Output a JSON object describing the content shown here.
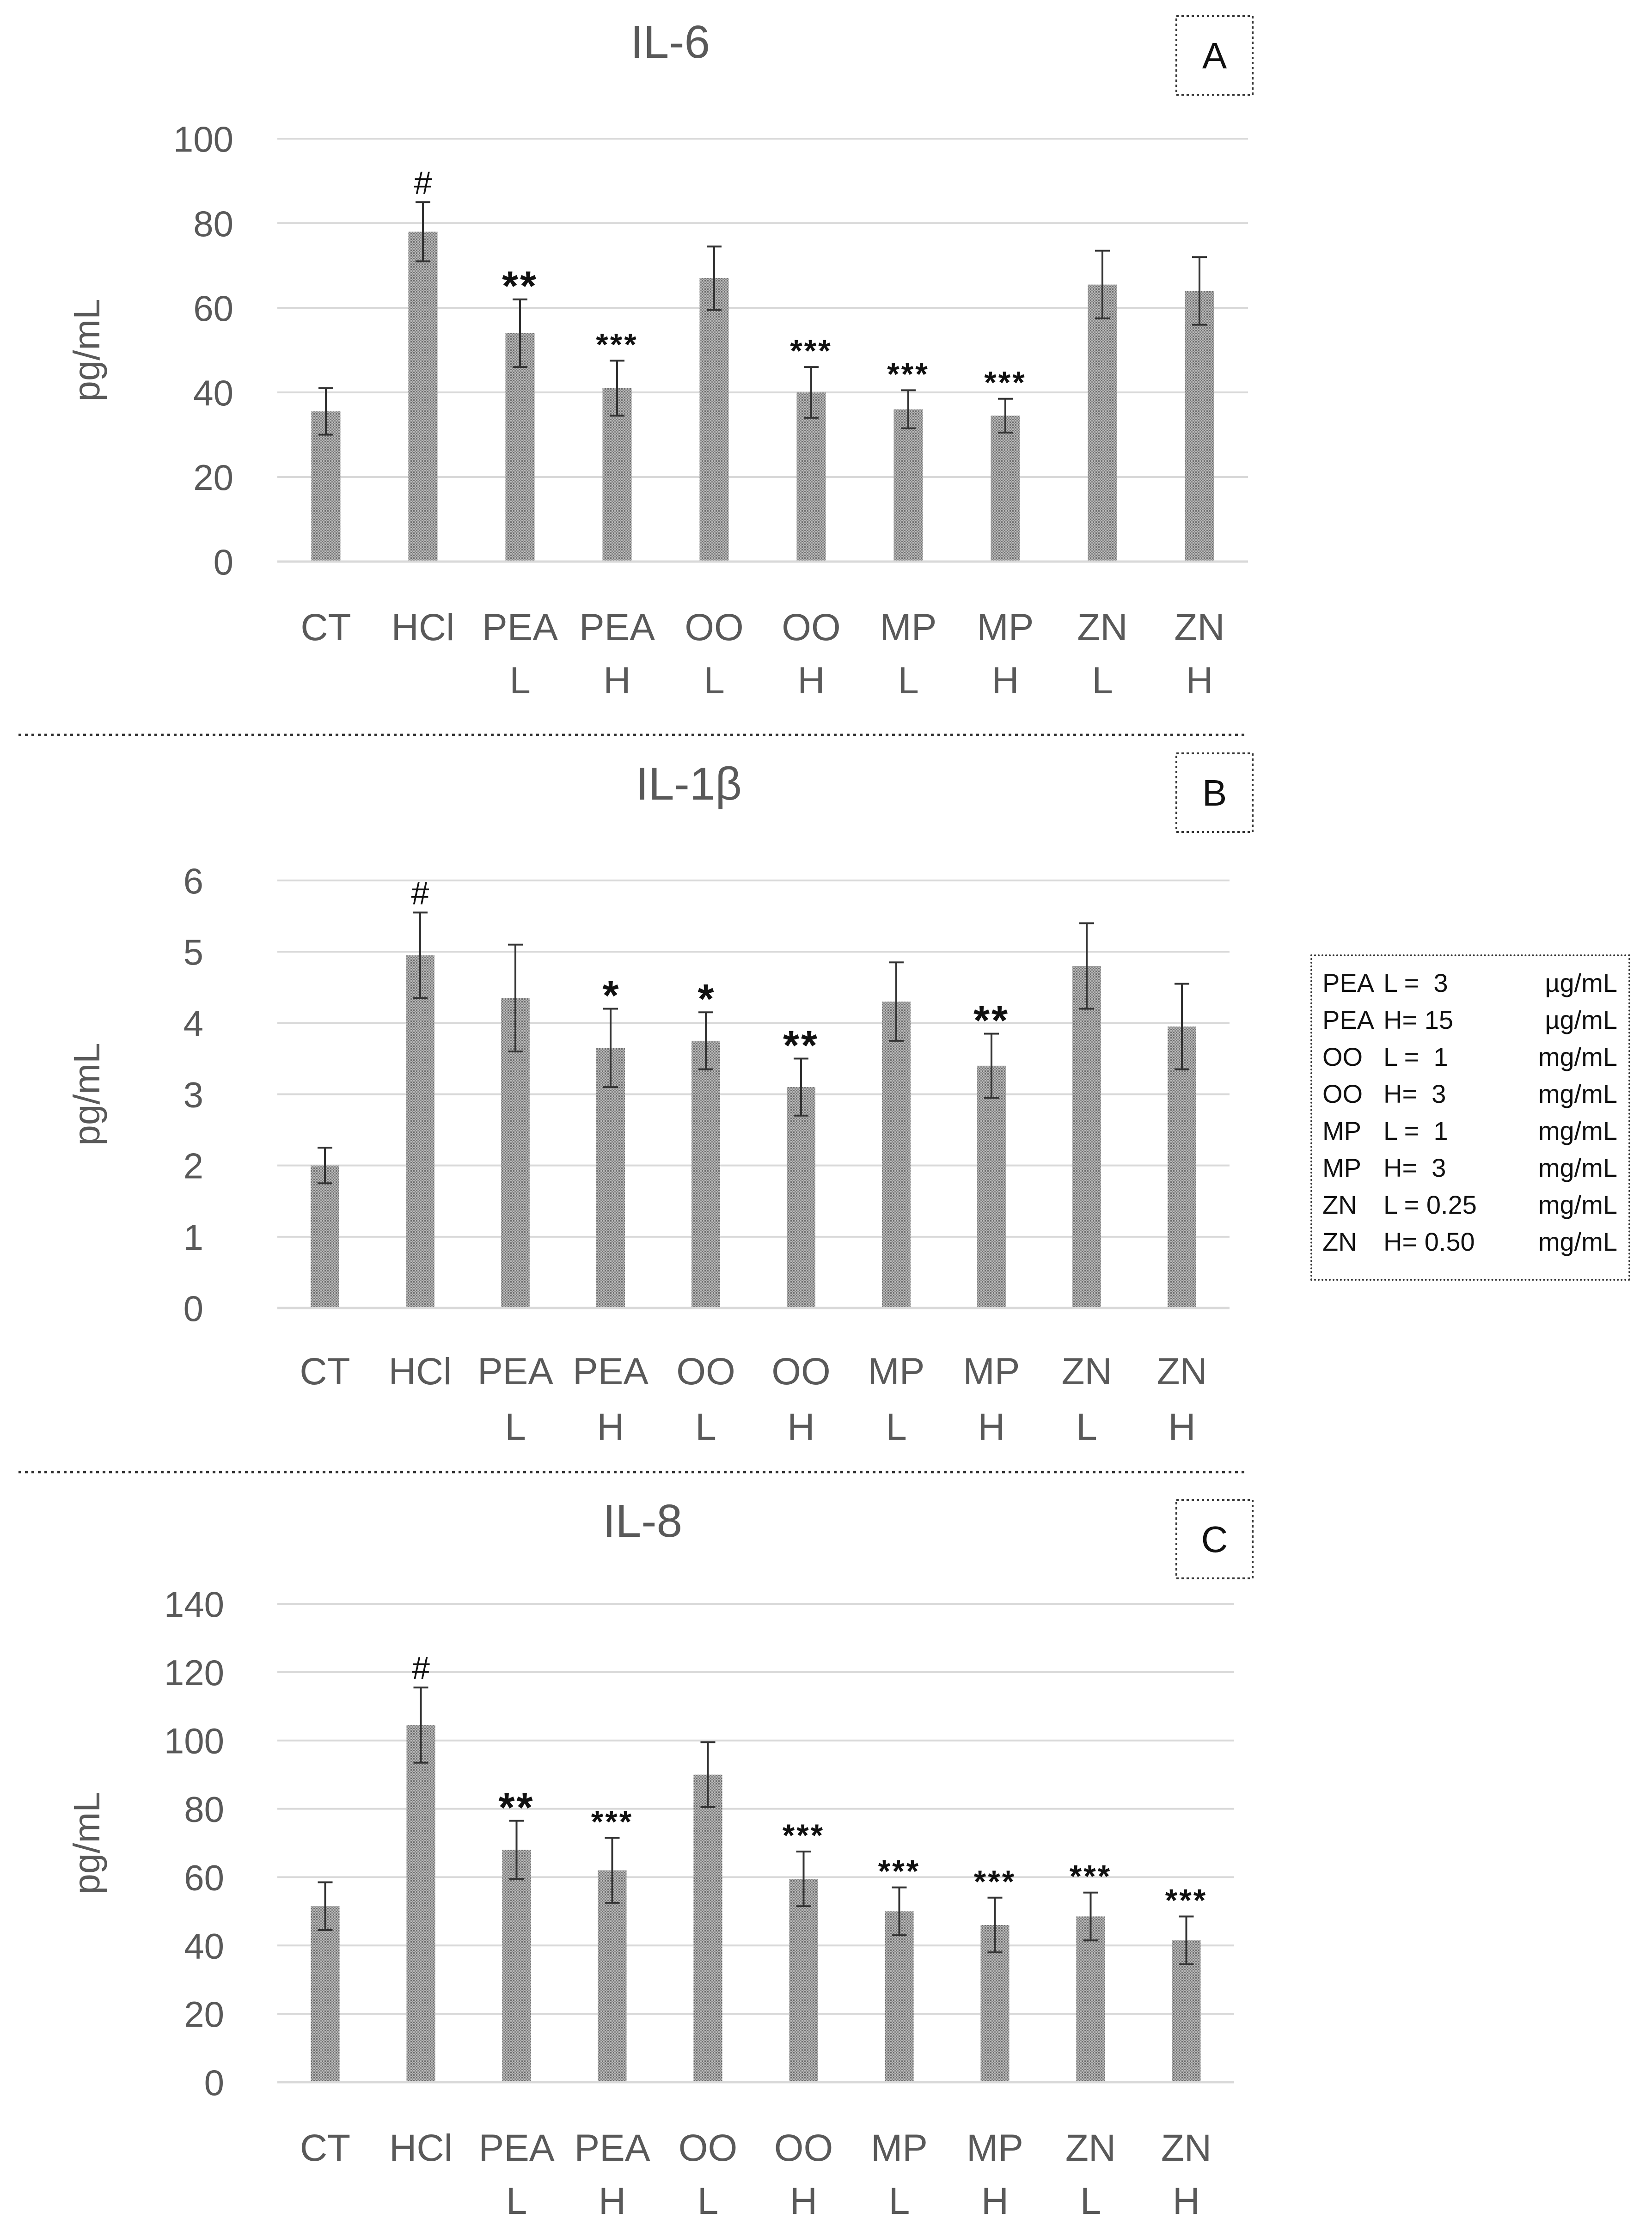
{
  "colors": {
    "bar": "#9a9a9a",
    "grid": "#d9d9d9",
    "text": "#595959",
    "error": "#333333",
    "axis": "#d9d9d9"
  },
  "chart_data": [
    {
      "id": "A",
      "type": "bar",
      "title": "IL-6",
      "panel_label": "A",
      "ylabel": "pg/mL",
      "ylim": [
        0,
        100
      ],
      "yticks": [
        "0",
        "20",
        "40",
        "60",
        "80",
        "100"
      ],
      "categories": [
        [
          "CT",
          ""
        ],
        [
          "HCl",
          ""
        ],
        [
          "PEA",
          "L"
        ],
        [
          "PEA",
          "H"
        ],
        [
          "OO",
          "L"
        ],
        [
          "OO",
          "H"
        ],
        [
          "MP",
          "L"
        ],
        [
          "MP",
          "H"
        ],
        [
          "ZN",
          "L"
        ],
        [
          "ZN",
          "H"
        ]
      ],
      "values": [
        35.5,
        78,
        54,
        41,
        67,
        40,
        36,
        34.5,
        65.5,
        64
      ],
      "errors": [
        5.5,
        7,
        8,
        6.5,
        7.5,
        6,
        4.5,
        4,
        8,
        8
      ],
      "annotations": [
        "",
        "#",
        "**",
        "***",
        "",
        "***",
        "***",
        "***",
        "",
        ""
      ]
    },
    {
      "id": "B",
      "type": "bar",
      "title": "IL-1β",
      "panel_label": "B",
      "ylabel": "pg/mL",
      "ylim": [
        0,
        6
      ],
      "yticks": [
        "0",
        "1",
        "2",
        "3",
        "4",
        "5",
        "6"
      ],
      "categories": [
        [
          "CT",
          ""
        ],
        [
          "HCl",
          ""
        ],
        [
          "PEA",
          "L"
        ],
        [
          "PEA",
          "H"
        ],
        [
          "OO",
          "L"
        ],
        [
          "OO",
          "H"
        ],
        [
          "MP",
          "L"
        ],
        [
          "MP",
          "H"
        ],
        [
          "ZN",
          "L"
        ],
        [
          "ZN",
          "H"
        ]
      ],
      "values": [
        2.0,
        4.95,
        4.35,
        3.65,
        3.75,
        3.1,
        4.3,
        3.4,
        4.8,
        3.95
      ],
      "errors": [
        0.25,
        0.6,
        0.75,
        0.55,
        0.4,
        0.4,
        0.55,
        0.45,
        0.6,
        0.6
      ],
      "annotations": [
        "",
        "#",
        "",
        "*",
        "*",
        "**",
        "",
        "**",
        "",
        ""
      ]
    },
    {
      "id": "C",
      "type": "bar",
      "title": "IL-8",
      "panel_label": "C",
      "ylabel": "pg/mL",
      "ylim": [
        0,
        140
      ],
      "yticks": [
        "0",
        "20",
        "40",
        "60",
        "80",
        "100",
        "120",
        "140"
      ],
      "categories": [
        [
          "CT",
          ""
        ],
        [
          "HCl",
          ""
        ],
        [
          "PEA",
          "L"
        ],
        [
          "PEA",
          "H"
        ],
        [
          "OO",
          "L"
        ],
        [
          "OO",
          "H"
        ],
        [
          "MP",
          "L"
        ],
        [
          "MP",
          "H"
        ],
        [
          "ZN",
          "L"
        ],
        [
          "ZN",
          "H"
        ]
      ],
      "values": [
        51.5,
        104.5,
        68,
        62,
        90,
        59.5,
        50,
        46,
        48.5,
        41.5
      ],
      "errors": [
        7,
        11,
        8.5,
        9.5,
        9.5,
        8,
        7,
        8,
        7,
        7
      ],
      "annotations": [
        "",
        "#",
        "**",
        "***",
        "",
        "***",
        "***",
        "***",
        "***",
        "***"
      ]
    }
  ],
  "legend": [
    {
      "drug": "PEA",
      "dose": "L =  3",
      "unit": "µg/mL"
    },
    {
      "drug": "PEA",
      "dose": "H= 15",
      "unit": "µg/mL"
    },
    {
      "drug": "OO",
      "dose": "L =  1",
      "unit": "mg/mL"
    },
    {
      "drug": "OO",
      "dose": "H=  3",
      "unit": "mg/mL"
    },
    {
      "drug": "MP",
      "dose": "L =  1",
      "unit": "mg/mL"
    },
    {
      "drug": "MP",
      "dose": "H=  3",
      "unit": "mg/mL"
    },
    {
      "drug": "ZN",
      "dose": "L = 0.25",
      "unit": "mg/mL"
    },
    {
      "drug": "ZN",
      "dose": "H= 0.50",
      "unit": "mg/mL"
    }
  ]
}
